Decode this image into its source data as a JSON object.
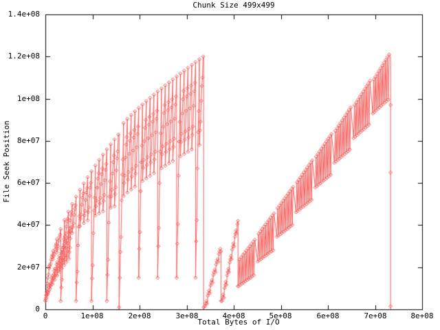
{
  "chart_data": {
    "type": "line",
    "style": "linespoints",
    "marker": "diamond",
    "title": "Chunk Size 499x499",
    "xlabel": "Total Bytes of I/O",
    "ylabel": "File Seek Position",
    "xlim": [
      0,
      800000000.0
    ],
    "ylim": [
      0,
      140000000.0
    ],
    "grid": false,
    "legend": "none",
    "line_color": "#f85f5c",
    "axis_color": "#000000",
    "bg_color": "#ffffff",
    "x_ticks": [
      {
        "v": 0,
        "label": "0"
      },
      {
        "v": 100000000.0,
        "label": "1e+08"
      },
      {
        "v": 200000000.0,
        "label": "2e+08"
      },
      {
        "v": 300000000.0,
        "label": "3e+08"
      },
      {
        "v": 400000000.0,
        "label": "4e+08"
      },
      {
        "v": 500000000.0,
        "label": "5e+08"
      },
      {
        "v": 600000000.0,
        "label": "6e+08"
      },
      {
        "v": 700000000.0,
        "label": "7e+08"
      },
      {
        "v": 800000000.0,
        "label": "8e+08"
      }
    ],
    "y_ticks": [
      {
        "v": 0,
        "label": "0"
      },
      {
        "v": 20000000.0,
        "label": "2e+07"
      },
      {
        "v": 40000000.0,
        "label": "4e+07"
      },
      {
        "v": 60000000.0,
        "label": "6e+07"
      },
      {
        "v": 80000000.0,
        "label": "8e+07"
      },
      {
        "v": 100000000.0,
        "label": "1e+08"
      },
      {
        "v": 120000000.0,
        "label": "1.2e+08"
      },
      {
        "v": 140000000.0,
        "label": "1.4e+08"
      }
    ],
    "segments": [
      {
        "type": "teeth",
        "x0": 0,
        "x1": 55000000.0,
        "n": 11,
        "top0": 2000000.0,
        "top1": 40000000.0,
        "exp": 0.75,
        "w0": 3000000.0,
        "w1": 16000000.0,
        "pts": 6,
        "newPath": true
      },
      {
        "type": "teeth",
        "x0": 0,
        "x1": 155000000.0,
        "n": 19,
        "top0": 5000000.0,
        "top1": 83000000.0,
        "exp": 0.55,
        "w0": 5000000.0,
        "w1": 34000000.0,
        "deepEvery": 4,
        "deepBottom": 4000000.0,
        "pts": 7,
        "newPath": true
      },
      {
        "type": "vline",
        "x": 156500000.0,
        "y0": 83000000.0,
        "y1": 0,
        "markers": [
          1000000.0
        ]
      },
      {
        "type": "teeth",
        "x0": 158000000.0,
        "x1": 335000000.0,
        "n": 22,
        "top0": 86000000.0,
        "top1": 120000000.0,
        "exp": 0.85,
        "w0": 36000000.0,
        "w1": 42000000.0,
        "deepEvery": 5,
        "deepBottom": 15000000.0,
        "pts": 7
      },
      {
        "type": "vline",
        "x": 336000000.0,
        "y0": 120000000.0,
        "y1": 0,
        "markers": [
          1000000.0
        ]
      },
      {
        "type": "zigzag",
        "x0": 339000000.0,
        "x1": 373000000.0,
        "y0": 1500000.0,
        "y1": 30000000.0,
        "n": 24,
        "back": 2500000.0,
        "endDrop": 4000000.0
      },
      {
        "type": "zigzag",
        "x0": 375000000.0,
        "x1": 409000000.0,
        "y0": 4000000.0,
        "y1": 42000000.0,
        "n": 26,
        "back": 3000000.0,
        "endDrop": 11000000.0
      },
      {
        "type": "clusters",
        "x0": 410000000.0,
        "x1": 736000000.0,
        "n": 8,
        "base0": 11000000.0,
        "base1": 93000000.0,
        "amp0": 22000000.0,
        "amp1": 28000000.0,
        "cycles": 9
      },
      {
        "type": "vline",
        "x": 733000000.0,
        "y0": 120000000.0,
        "y1": 0,
        "markers": [
          97000000.0,
          65000000.0,
          1500000.0
        ]
      }
    ]
  }
}
